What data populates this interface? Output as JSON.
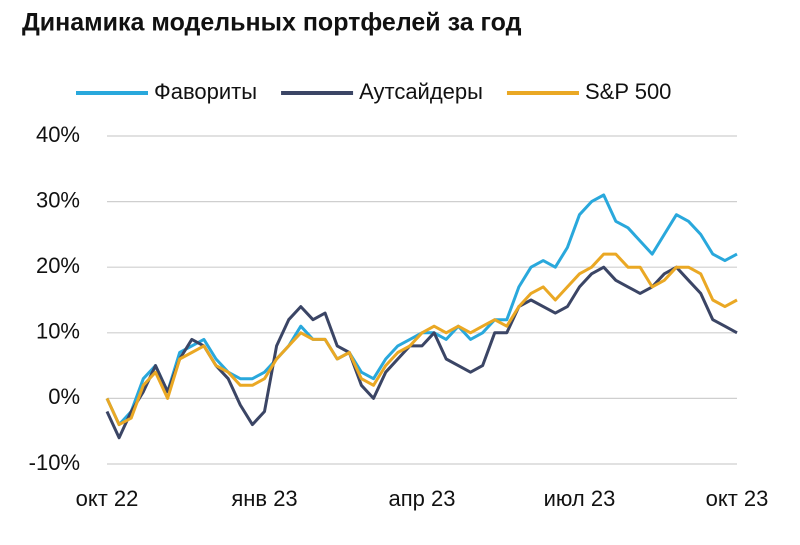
{
  "chart_data": {
    "type": "line",
    "title": "Динамика модельных портфелей за год",
    "categories": [
      "окт 22",
      null,
      null,
      null,
      null,
      null,
      null,
      null,
      null,
      null,
      null,
      null,
      null,
      "янв 23",
      null,
      null,
      null,
      null,
      null,
      null,
      null,
      null,
      null,
      null,
      null,
      null,
      "апр 23",
      null,
      null,
      null,
      null,
      null,
      null,
      null,
      null,
      null,
      null,
      null,
      null,
      "июл 23",
      null,
      null,
      null,
      null,
      null,
      null,
      null,
      null,
      null,
      null,
      null,
      null,
      "окт 23"
    ],
    "series": [
      {
        "name": "Фавориты",
        "color": "#29a8dc",
        "values": [
          0,
          -4,
          -2,
          3,
          5,
          1,
          7,
          8,
          9,
          6,
          4,
          3,
          3,
          4,
          6,
          8,
          11,
          9,
          9,
          6,
          7,
          4,
          3,
          6,
          8,
          9,
          10,
          10,
          9,
          11,
          9,
          10,
          12,
          12,
          17,
          20,
          21,
          20,
          23,
          28,
          30,
          31,
          27,
          26,
          24,
          22,
          25,
          28,
          27,
          25,
          22,
          21,
          22
        ]
      },
      {
        "name": "Аутсайдеры",
        "color": "#3b4565",
        "values": [
          -2,
          -6,
          -2,
          1,
          5,
          1,
          6,
          9,
          8,
          5,
          3,
          -1,
          -4,
          -2,
          8,
          12,
          14,
          12,
          13,
          8,
          7,
          2,
          0,
          4,
          6,
          8,
          8,
          10,
          6,
          5,
          4,
          5,
          10,
          10,
          14,
          15,
          14,
          13,
          14,
          17,
          19,
          20,
          18,
          17,
          16,
          17,
          19,
          20,
          18,
          16,
          12,
          11,
          10
        ]
      },
      {
        "name": "S&P 500",
        "color": "#eaa824",
        "values": [
          0,
          -4,
          -3,
          2,
          4,
          0,
          6,
          7,
          8,
          5,
          4,
          2,
          2,
          3,
          6,
          8,
          10,
          9,
          9,
          6,
          7,
          3,
          2,
          5,
          7,
          8,
          10,
          11,
          10,
          11,
          10,
          11,
          12,
          11,
          14,
          16,
          17,
          15,
          17,
          19,
          20,
          22,
          22,
          20,
          20,
          17,
          18,
          20,
          20,
          19,
          15,
          14,
          15
        ]
      }
    ],
    "ylim": [
      -10,
      40
    ],
    "yticks": [
      {
        "value": -10,
        "label": "-10%"
      },
      {
        "value": 0,
        "label": "0%"
      },
      {
        "value": 10,
        "label": "10%"
      },
      {
        "value": 20,
        "label": "20%"
      },
      {
        "value": 30,
        "label": "30%"
      },
      {
        "value": 40,
        "label": "40%"
      }
    ],
    "grid": true,
    "legend": "top"
  }
}
